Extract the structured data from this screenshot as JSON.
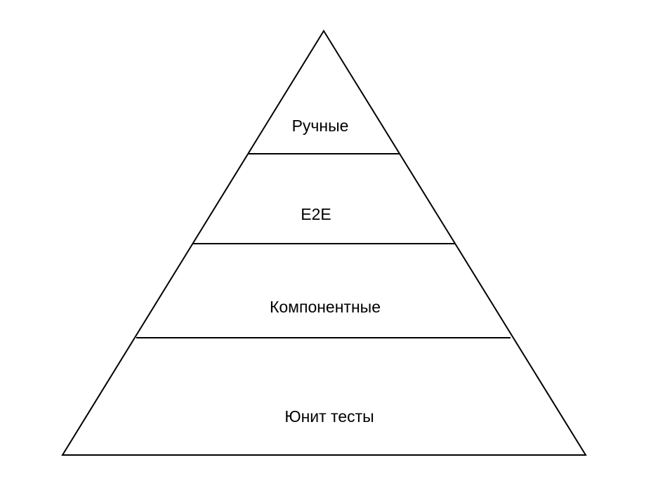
{
  "diagram": {
    "type": "pyramid",
    "stroke_color": "#000000",
    "fill_color": "#ffffff",
    "layers": [
      {
        "label": "Ручные"
      },
      {
        "label": "E2E"
      },
      {
        "label": "Компонентные"
      },
      {
        "label": "Юнит тесты"
      }
    ]
  }
}
